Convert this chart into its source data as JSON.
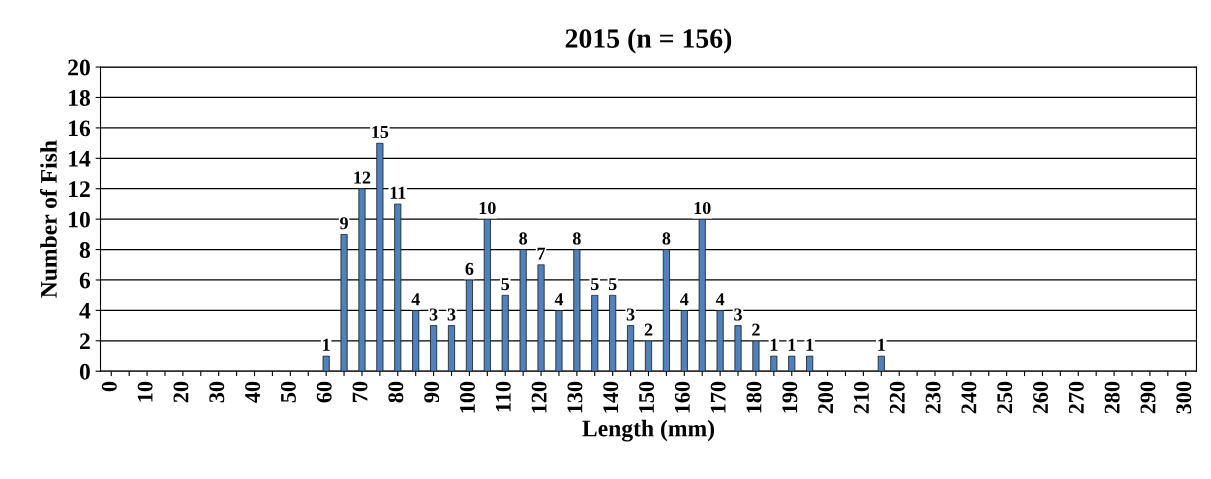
{
  "chart_data": {
    "type": "bar",
    "title": "2015 (n = 156)",
    "xlabel": "Length (mm)",
    "ylabel": "Number of Fish",
    "categories": [
      "0",
      null,
      "10",
      null,
      "20",
      null,
      "30",
      null,
      "40",
      null,
      "50",
      null,
      "60",
      null,
      "70",
      null,
      "80",
      null,
      "90",
      null,
      "100",
      null,
      "110",
      null,
      "120",
      null,
      "130",
      null,
      "140",
      null,
      "150",
      null,
      "160",
      null,
      "170",
      null,
      "180",
      null,
      "190",
      null,
      "200",
      null,
      "210",
      null,
      "220",
      null,
      "230",
      null,
      "240",
      null,
      "250",
      null,
      "260",
      null,
      "270",
      null,
      "280",
      null,
      "290",
      null,
      "300"
    ],
    "values": [
      0,
      0,
      0,
      0,
      0,
      0,
      0,
      0,
      0,
      0,
      0,
      0,
      1,
      9,
      12,
      15,
      11,
      4,
      3,
      3,
      6,
      10,
      5,
      8,
      7,
      4,
      8,
      5,
      5,
      3,
      2,
      8,
      4,
      10,
      4,
      3,
      2,
      1,
      1,
      1,
      0,
      0,
      0,
      1,
      0,
      0,
      0,
      0,
      0,
      0,
      0,
      0,
      0,
      0,
      0,
      0,
      0,
      0,
      0,
      0,
      0
    ],
    "value_labels": [
      null,
      null,
      null,
      null,
      null,
      null,
      null,
      null,
      null,
      null,
      null,
      null,
      "1",
      "9",
      "12",
      "15",
      "11",
      "4",
      "3",
      "3",
      "6",
      "10",
      "5",
      "8",
      "7",
      "4",
      "8",
      "5",
      "5",
      "3",
      "2",
      "8",
      "4",
      "10",
      "4",
      "3",
      "2",
      "1",
      "1",
      "1",
      null,
      null,
      null,
      "1",
      null,
      null,
      null,
      null,
      null,
      null,
      null,
      null,
      null,
      null,
      null,
      null,
      null,
      null,
      null,
      null,
      null
    ],
    "color": "#4f81bd",
    "ylim": [
      0,
      20
    ],
    "yticks": [
      0,
      2,
      4,
      6,
      8,
      10,
      12,
      14,
      16,
      18,
      20
    ],
    "grid": "y",
    "legend": false
  }
}
